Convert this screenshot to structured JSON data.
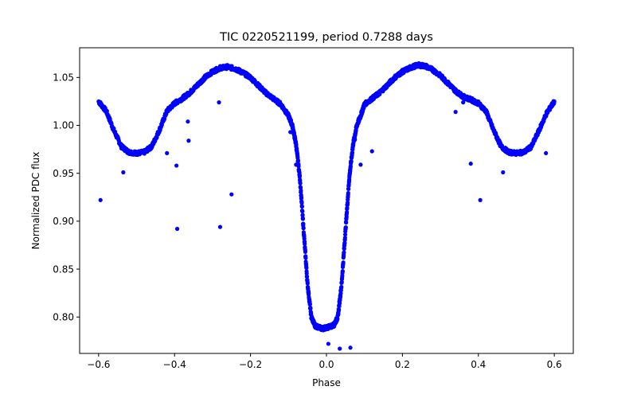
{
  "chart_data": {
    "type": "scatter",
    "title": "TIC 0220521199, period 0.7288 days",
    "xlabel": "Phase",
    "ylabel": "Normalized PDC flux",
    "xlim": [
      -0.65,
      0.65
    ],
    "ylim": [
      0.762,
      1.081
    ],
    "xticks": [
      -0.6,
      -0.4,
      -0.2,
      0.0,
      0.2,
      0.4,
      0.6
    ],
    "xtick_labels": [
      "−0.6",
      "−0.4",
      "−0.2",
      "0.0",
      "0.2",
      "0.4",
      "0.6"
    ],
    "yticks": [
      0.8,
      0.85,
      0.9,
      0.95,
      1.0,
      1.05
    ],
    "ytick_labels": [
      "0.80",
      "0.85",
      "0.90",
      "0.95",
      "1.00",
      "1.05"
    ],
    "grid": false,
    "marker_color": "#0000ff",
    "curve": {
      "x": [
        -0.6,
        -0.58,
        -0.56,
        -0.54,
        -0.52,
        -0.5,
        -0.48,
        -0.46,
        -0.44,
        -0.42,
        -0.4,
        -0.38,
        -0.36,
        -0.34,
        -0.32,
        -0.3,
        -0.28,
        -0.26,
        -0.24,
        -0.22,
        -0.2,
        -0.18,
        -0.16,
        -0.14,
        -0.12,
        -0.1,
        -0.09,
        -0.08,
        -0.07,
        -0.06,
        -0.05,
        -0.04,
        -0.03,
        -0.02,
        -0.01,
        0.0,
        0.01,
        0.02,
        0.03,
        0.04,
        0.05,
        0.06,
        0.07,
        0.08,
        0.09,
        0.1,
        0.12,
        0.14,
        0.16,
        0.18,
        0.2,
        0.22,
        0.24,
        0.26,
        0.28,
        0.3,
        0.32,
        0.34,
        0.36,
        0.38,
        0.4,
        0.42,
        0.44,
        0.46,
        0.48,
        0.5,
        0.52,
        0.54,
        0.56,
        0.58,
        0.6
      ],
      "y": [
        1.025,
        1.015,
        0.995,
        0.978,
        0.972,
        0.971,
        0.972,
        0.978,
        0.995,
        1.015,
        1.023,
        1.028,
        1.034,
        1.042,
        1.05,
        1.056,
        1.06,
        1.061,
        1.059,
        1.055,
        1.05,
        1.042,
        1.034,
        1.028,
        1.022,
        1.01,
        1.0,
        0.98,
        0.945,
        0.89,
        0.835,
        0.8,
        0.791,
        0.789,
        0.788,
        0.789,
        0.79,
        0.792,
        0.8,
        0.835,
        0.89,
        0.945,
        0.98,
        1.0,
        1.01,
        1.022,
        1.028,
        1.034,
        1.042,
        1.05,
        1.056,
        1.06,
        1.063,
        1.062,
        1.058,
        1.052,
        1.044,
        1.036,
        1.03,
        1.027,
        1.023,
        1.015,
        0.995,
        0.978,
        0.972,
        0.971,
        0.972,
        0.978,
        0.995,
        1.013,
        1.025
      ]
    },
    "outliers": {
      "x": [
        -0.595,
        -0.535,
        -0.42,
        -0.395,
        -0.393,
        -0.365,
        -0.363,
        -0.28,
        -0.283,
        -0.25,
        -0.095,
        -0.08,
        0.005,
        0.035,
        0.063,
        0.075,
        0.09,
        0.12,
        0.38,
        0.405,
        0.465,
        0.578,
        0.34,
        0.36
      ],
      "y": [
        0.922,
        0.951,
        0.971,
        0.958,
        0.892,
        1.004,
        0.984,
        0.894,
        1.024,
        0.928,
        0.993,
        0.959,
        0.772,
        0.767,
        0.768,
        0.985,
        0.959,
        0.973,
        0.96,
        0.922,
        0.951,
        0.971,
        1.014,
        1.024
      ]
    }
  }
}
